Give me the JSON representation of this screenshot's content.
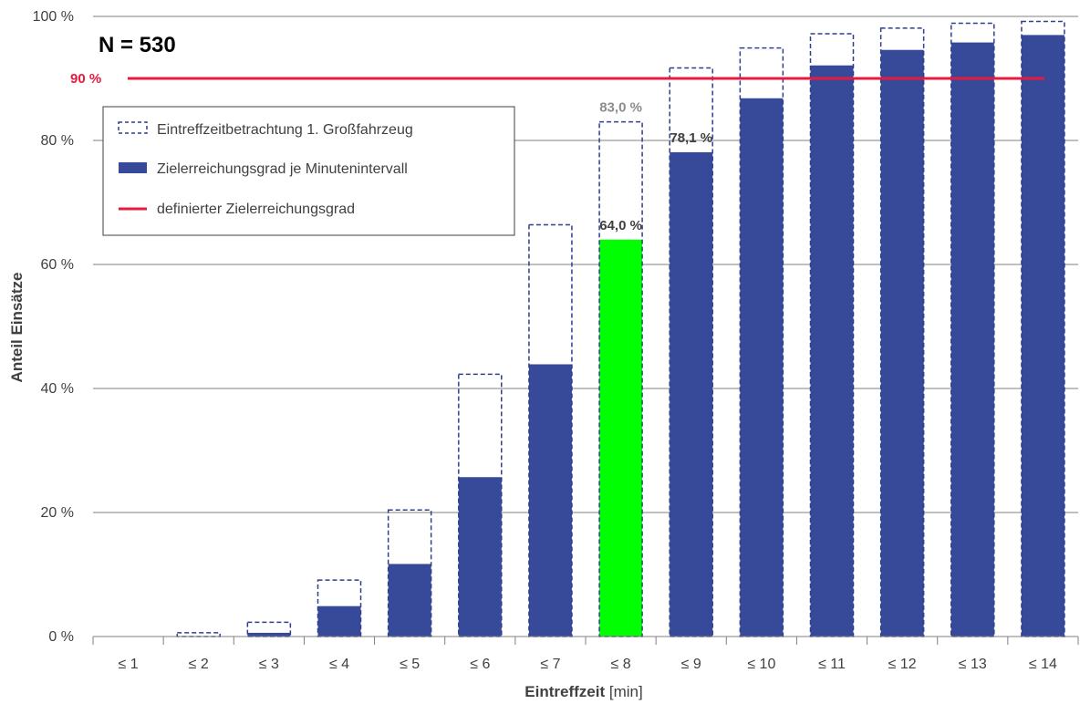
{
  "chart_data": {
    "type": "bar",
    "categories": [
      "≤ 1",
      "≤ 2",
      "≤ 3",
      "≤ 4",
      "≤ 5",
      "≤ 6",
      "≤ 7",
      "≤ 8",
      "≤ 9",
      "≤ 10",
      "≤ 11",
      "≤ 12",
      "≤ 13",
      "≤ 14"
    ],
    "series": [
      {
        "name": "Eintreffzeitbetrachtung 1. Großfahrzeug",
        "style": "dashed-outline",
        "color": "#2f3f8f",
        "values": [
          0.0,
          0.6,
          2.3,
          9.1,
          20.4,
          42.3,
          66.4,
          83.0,
          91.7,
          94.9,
          97.2,
          98.1,
          98.9,
          99.2
        ]
      },
      {
        "name": "Zielerreichungsgrad je Minutenintervall",
        "style": "filled",
        "color": "#374a9a",
        "highlight_color": "#00ff00",
        "highlight_index": 7,
        "values": [
          0.0,
          0.0,
          0.6,
          4.9,
          11.7,
          25.7,
          43.9,
          64.0,
          78.1,
          86.8,
          92.1,
          94.6,
          95.8,
          97.0
        ]
      }
    ],
    "target": {
      "name": "definierter Zielerreichungsgrad",
      "value": 90,
      "label": "90 %",
      "color": "#e8193c"
    },
    "annotations": [
      {
        "text": "N = 530"
      },
      {
        "text": "83,0 %",
        "category_index": 7,
        "value": 83.0,
        "color": "#8c8c8c"
      },
      {
        "text": "64,0 %",
        "category_index": 7,
        "value": 64.0,
        "color": "#404040"
      },
      {
        "text": "78,1 %",
        "category_index": 8,
        "value": 78.1,
        "color": "#404040"
      }
    ],
    "y_ticks": [
      "0 %",
      "20 %",
      "40 %",
      "60 %",
      "80 %",
      "100 %"
    ],
    "ylim": [
      0,
      100
    ],
    "xlabel_bold": "Eintreffzeit",
    "xlabel_rest": " [min]",
    "ylabel": "Anteil Einsätze",
    "grid": true,
    "legend_position": "top-left"
  }
}
